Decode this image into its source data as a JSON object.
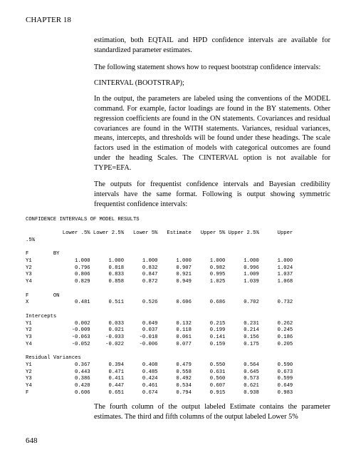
{
  "header": {
    "chapter": "CHAPTER 18"
  },
  "paras": {
    "p1": "estimation, both EQTAIL and HPD confidence intervals are available for standardized parameter estimates.",
    "p2": "The following statement shows how to request bootstrap confidence intervals:",
    "cmd": "CINTERVAL (BOOTSTRAP);",
    "p3": "In the output, the parameters are labeled using the conventions of the MODEL command.  For example, factor loadings are found in the BY statements.  Other regression coefficients are found in the ON statements.  Covariances and residual covariances are found in the WITH statements.  Variances, residual variances, means, intercepts, and thresholds will be found under these headings.  The scale factors used in the estimation of models with categorical outcomes are found under the heading Scales.  The CINTERVAL option is not available for TYPE=EFA.",
    "p4": "The outputs for frequentist confidence intervals and Bayesian credibility intervals have the same format.  Following is output showing symmetric frequentist confidence intervals:",
    "p5": "The fourth column of the output labeled Estimate contains the parameter estimates.  The third and fifth columns of the output labeled Lower 5%"
  },
  "table": {
    "title": "CONFIDENCE INTERVALS OF MODEL RESULTS",
    "columns": [
      "Lower .5%",
      "Lower 2.5%",
      "Lower 5%",
      "Estimate",
      "Upper 5%",
      "Upper 2.5%",
      "Upper"
    ],
    "col_cont": ".5%",
    "groups": [
      {
        "label": "F        BY",
        "rows": [
          [
            "Y1",
            "1.000",
            "1.000",
            "1.000",
            "1.000",
            "1.000",
            "1.000",
            "1.000"
          ],
          [
            "Y2",
            "0.796",
            "0.818",
            "0.832",
            "0.907",
            "0.982",
            "0.996",
            "1.024"
          ],
          [
            "Y3",
            "0.806",
            "0.833",
            "0.847",
            "0.921",
            "0.995",
            "1.009",
            "1.037"
          ],
          [
            "Y4",
            "0.829",
            "0.858",
            "0.872",
            "0.949",
            "1.025",
            "1.039",
            "1.068"
          ]
        ]
      },
      {
        "label": "F        ON",
        "rows": [
          [
            "X",
            "0.481",
            "0.511",
            "0.526",
            "0.606",
            "0.686",
            "0.702",
            "0.732"
          ]
        ]
      },
      {
        "label": "Intercepts",
        "rows": [
          [
            "Y1",
            "0.002",
            "0.033",
            "0.049",
            "0.132",
            "0.215",
            "0.231",
            "0.262"
          ],
          [
            "Y2",
            "-0.009",
            "0.021",
            "0.037",
            "0.118",
            "0.199",
            "0.214",
            "0.245"
          ],
          [
            "Y3",
            "-0.063",
            "-0.033",
            "-0.018",
            "0.061",
            "0.141",
            "0.156",
            "0.186"
          ],
          [
            "Y4",
            "-0.052",
            "-0.022",
            "-0.006",
            "0.077",
            "0.159",
            "0.175",
            "0.205"
          ]
        ]
      },
      {
        "label": "Residual Variances",
        "rows": [
          [
            "Y1",
            "0.367",
            "0.394",
            "0.408",
            "0.479",
            "0.550",
            "0.564",
            "0.590"
          ],
          [
            "Y2",
            "0.443",
            "0.471",
            "0.485",
            "0.558",
            "0.631",
            "0.645",
            "0.673"
          ],
          [
            "Y3",
            "0.386",
            "0.411",
            "0.424",
            "0.492",
            "0.560",
            "0.573",
            "0.599"
          ],
          [
            "Y4",
            "0.420",
            "0.447",
            "0.461",
            "0.534",
            "0.607",
            "0.621",
            "0.649"
          ],
          [
            "F",
            "0.606",
            "0.651",
            "0.674",
            "0.794",
            "0.915",
            "0.938",
            "0.983"
          ]
        ]
      }
    ]
  },
  "footer": {
    "pagenum": "648"
  },
  "style": {
    "body_font": "Times New Roman",
    "mono_font": "Courier New",
    "body_size_pt": 10.2,
    "mono_size_pt": 7.2,
    "text_color": "#000000",
    "background": "#ffffff",
    "col_widths_ch": [
      10,
      11,
      11,
      11,
      11,
      11,
      11,
      11
    ]
  }
}
